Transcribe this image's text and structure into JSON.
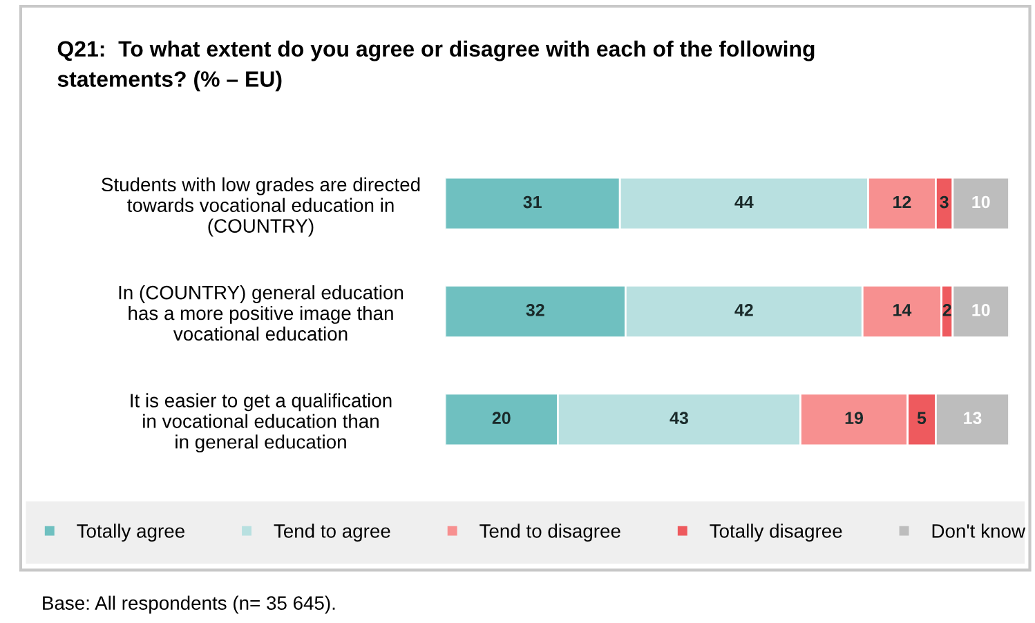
{
  "chart_data": {
    "type": "bar",
    "orientation": "horizontal",
    "stacked": true,
    "data_labels": true,
    "legend": "bottom",
    "grid": false,
    "title": "Q21:  To what extent do you agree or disagree with each of the following\nstatements? (% – EU)",
    "categories": [
      "Students with low grades are directed\ntowards vocational education in\n(COUNTRY)",
      "In (COUNTRY) general education\nhas a more positive image than\nvocational education",
      "It is easier to get a qualification\nin vocational education than\nin general education"
    ],
    "series": [
      {
        "name": "Totally agree",
        "color": "#6fc0c0",
        "values": [
          31,
          32,
          20
        ]
      },
      {
        "name": "Tend to agree",
        "color": "#b8e0e0",
        "values": [
          44,
          42,
          43
        ]
      },
      {
        "name": "Tend to disagree",
        "color": "#f79090",
        "values": [
          12,
          14,
          19
        ]
      },
      {
        "name": "Totally disagree",
        "color": "#ee5a5e",
        "values": [
          3,
          2,
          5
        ]
      },
      {
        "name": "Don't know",
        "color": "#bdbdbd",
        "values": [
          10,
          10,
          13
        ]
      }
    ],
    "annotations": [
      "Base: All respondents (n= 35 645)."
    ]
  }
}
